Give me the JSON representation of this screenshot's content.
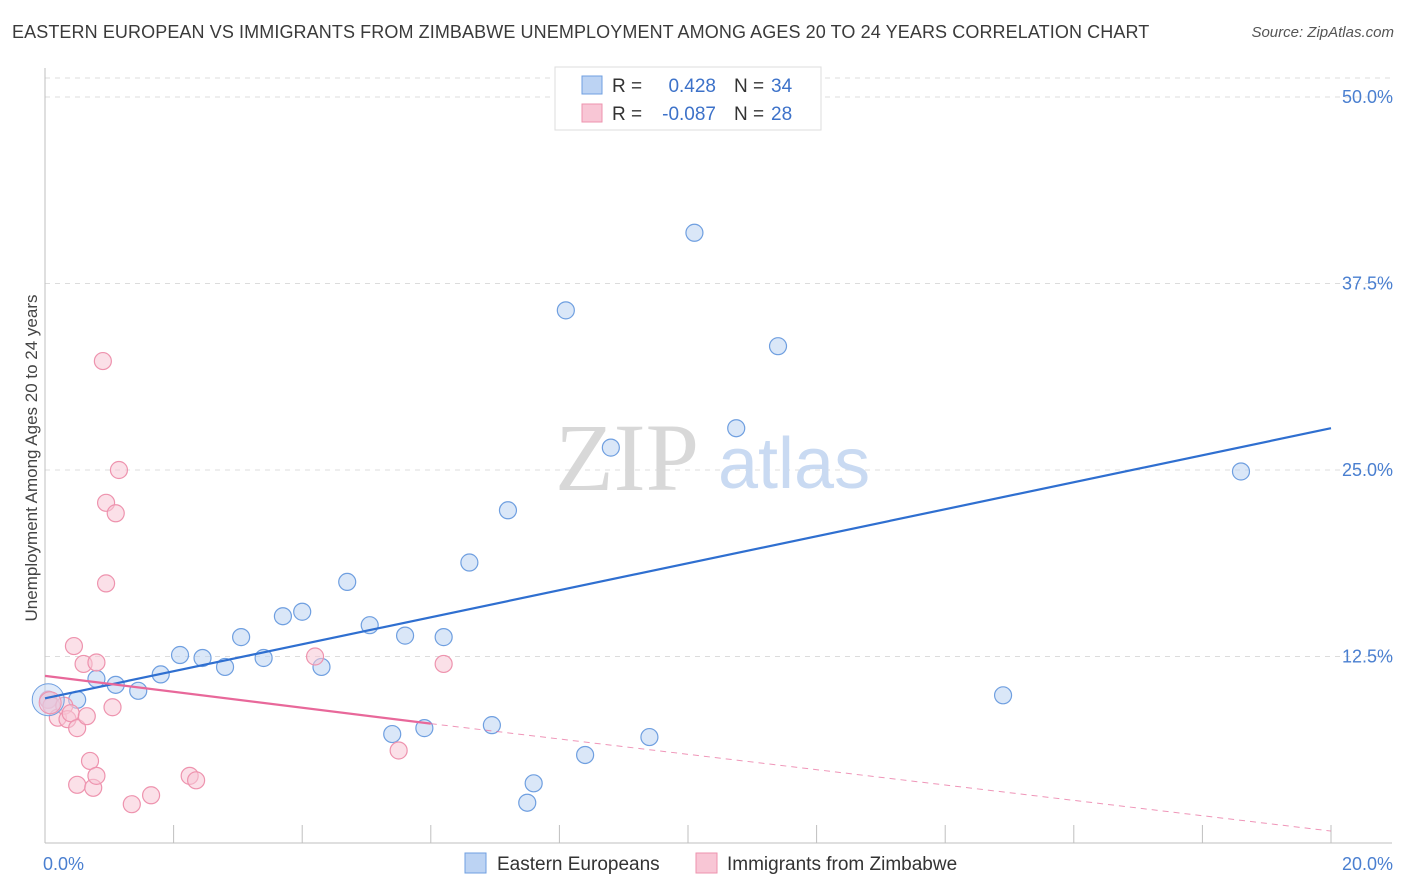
{
  "title": "EASTERN EUROPEAN VS IMMIGRANTS FROM ZIMBABWE UNEMPLOYMENT AMONG AGES 20 TO 24 YEARS CORRELATION CHART",
  "source": "Source: ZipAtlas.com",
  "watermark": {
    "zip": "ZIP",
    "atlas": "atlas"
  },
  "chart_data": {
    "type": "scatter",
    "xlabel": "",
    "ylabel": "Unemployment Among Ages 20 to 24 years",
    "xlim": [
      0,
      20
    ],
    "ylim": [
      0,
      50
    ],
    "x_tick_labels": [
      "0.0%",
      "20.0%"
    ],
    "y_tick_labels": [
      "12.5%",
      "25.0%",
      "37.5%",
      "50.0%"
    ],
    "y_ticks": [
      12.5,
      25,
      37.5,
      50
    ],
    "grid": true,
    "legend": {
      "position": "top-center",
      "rows": [
        {
          "r_label": "R =",
          "r_value": "0.428",
          "n_label": "N =",
          "n_value": "34"
        },
        {
          "r_label": "R =",
          "r_value": "-0.087",
          "n_label": "N =",
          "n_value": "28"
        }
      ]
    },
    "series": [
      {
        "name": "Eastern Europeans",
        "color": "#6f9fe0",
        "fill": "#bcd3f3",
        "line_color": "#2f6fd0",
        "trend": {
          "x": [
            0,
            20
          ],
          "y": [
            9.7,
            27.8
          ],
          "dashed_extension": false
        },
        "points": [
          [
            0.05,
            9.6
          ],
          [
            0.5,
            9.6
          ],
          [
            0.8,
            11.0
          ],
          [
            1.1,
            10.6
          ],
          [
            1.45,
            10.2
          ],
          [
            1.8,
            11.3
          ],
          [
            2.1,
            12.6
          ],
          [
            2.45,
            12.4
          ],
          [
            2.8,
            11.8
          ],
          [
            3.05,
            13.8
          ],
          [
            3.4,
            12.4
          ],
          [
            3.7,
            15.2
          ],
          [
            4.0,
            15.5
          ],
          [
            4.3,
            11.8
          ],
          [
            4.7,
            17.5
          ],
          [
            5.05,
            14.6
          ],
          [
            5.4,
            7.3
          ],
          [
            5.6,
            13.9
          ],
          [
            5.9,
            7.7
          ],
          [
            6.2,
            13.8
          ],
          [
            6.6,
            18.8
          ],
          [
            6.95,
            7.9
          ],
          [
            7.2,
            22.3
          ],
          [
            7.5,
            2.7
          ],
          [
            7.6,
            4.0
          ],
          [
            8.1,
            35.7
          ],
          [
            8.4,
            5.9
          ],
          [
            8.8,
            26.5
          ],
          [
            9.4,
            7.1
          ],
          [
            10.1,
            40.9
          ],
          [
            10.75,
            27.8
          ],
          [
            11.4,
            33.3
          ],
          [
            14.9,
            9.9
          ],
          [
            18.6,
            24.9
          ]
        ]
      },
      {
        "name": "Immigrants from Zimbabwe",
        "color": "#ee93ae",
        "fill": "#f8c6d5",
        "line_color": "#e8689a",
        "trend": {
          "x": [
            0,
            6
          ],
          "y": [
            11.2,
            8.0
          ],
          "dashed_to": [
            20,
            0.8
          ]
        },
        "points": [
          [
            0.05,
            9.6
          ],
          [
            0.1,
            9.2
          ],
          [
            0.2,
            8.4
          ],
          [
            0.3,
            9.2
          ],
          [
            0.35,
            8.3
          ],
          [
            0.4,
            8.7
          ],
          [
            0.45,
            13.2
          ],
          [
            0.5,
            7.7
          ],
          [
            0.5,
            3.9
          ],
          [
            0.6,
            12.0
          ],
          [
            0.65,
            8.5
          ],
          [
            0.7,
            5.5
          ],
          [
            0.75,
            3.7
          ],
          [
            0.8,
            12.1
          ],
          [
            0.8,
            4.5
          ],
          [
            0.9,
            32.3
          ],
          [
            0.95,
            22.8
          ],
          [
            0.95,
            17.4
          ],
          [
            1.05,
            9.1
          ],
          [
            1.1,
            22.1
          ],
          [
            1.15,
            25.0
          ],
          [
            1.35,
            2.6
          ],
          [
            1.65,
            3.2
          ],
          [
            2.25,
            4.5
          ],
          [
            2.35,
            4.2
          ],
          [
            4.2,
            12.5
          ],
          [
            5.5,
            6.2
          ],
          [
            6.2,
            12.0
          ]
        ]
      }
    ]
  }
}
